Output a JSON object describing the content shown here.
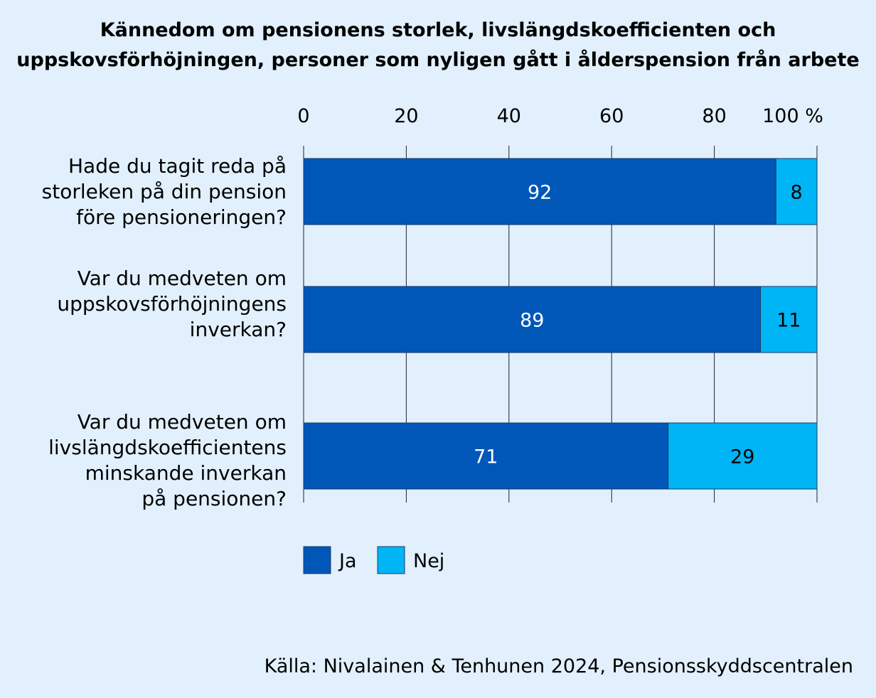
{
  "chart_data": {
    "type": "bar",
    "orientation": "horizontal",
    "stacked": true,
    "title_lines": [
      "Kännedom om pensionens storlek, livslängdskoefficienten och",
      "uppskovsförhöjningen, personer som nyligen gått i ålderspension från arbete"
    ],
    "x_ticks": [
      "0",
      "20",
      "40",
      "60",
      "80",
      "100 %"
    ],
    "xlim": [
      0,
      100
    ],
    "grid": true,
    "categories": [
      [
        "Hade du tagit reda på",
        "storleken på din pension",
        "före pensioneringen?"
      ],
      [
        "Var du medveten om",
        "uppskovsförhöjningens",
        "inverkan?"
      ],
      [
        "Var du medveten om",
        "livslängdskoefficientens",
        "minskande inverkan",
        "på pensionen?"
      ]
    ],
    "series": [
      {
        "name": "Ja",
        "values": [
          92,
          89,
          71
        ],
        "color": "#0057b8",
        "label_color": "#ffffff"
      },
      {
        "name": "Nej",
        "values": [
          8,
          11,
          29
        ],
        "color": "#00b5f5",
        "label_color": "#000000"
      }
    ],
    "legend_position": "bottom-left"
  },
  "source": "Källa: Nivalainen & Tenhunen 2024, Pensionsskyddscentralen"
}
